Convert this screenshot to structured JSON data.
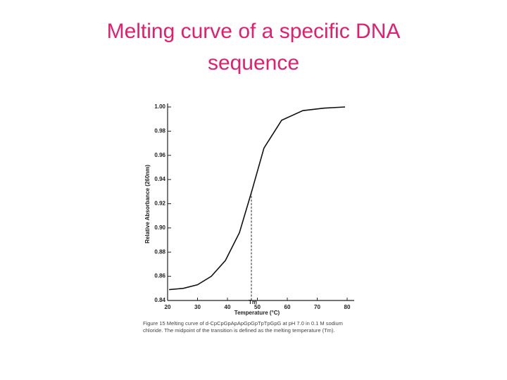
{
  "chart_data": {
    "type": "line",
    "title": "Melting curve of a specific DNA sequence",
    "x_label": "Temperature (°C)",
    "y_label": "Relative Absorbance (260nm)",
    "caption": "Figure 15 Melting curve of d-CpCpGpApApGpGpTpTpGpG at pH 7.0 in 0.1 M sodium chloride. The midpoint of the transition is defined as the melting temperature (Tm).",
    "x": [
      20.5,
      25.2,
      30,
      34.6,
      39.3,
      44,
      48.2,
      52.2,
      58.1,
      65.2,
      72.2,
      79.3
    ],
    "values": [
      0.849,
      0.85,
      0.853,
      0.86,
      0.873,
      0.896,
      0.931,
      0.966,
      0.989,
      0.997,
      0.999,
      1.0
    ],
    "color": "#111111",
    "xlim": [
      20,
      80
    ],
    "xticks": [
      20,
      30,
      40,
      50,
      60,
      70,
      80
    ],
    "ylim": [
      0.84,
      1.0
    ],
    "yticks": [
      0.84,
      0.86,
      0.88,
      {
        "value": 0.9,
        "label": "0.90"
      },
      0.92,
      0.94,
      0.96,
      0.98,
      {
        "value": 1.0,
        "label": "1.00"
      }
    ],
    "annotations": [
      {
        "x": 48,
        "label": "Tm"
      }
    ]
  }
}
